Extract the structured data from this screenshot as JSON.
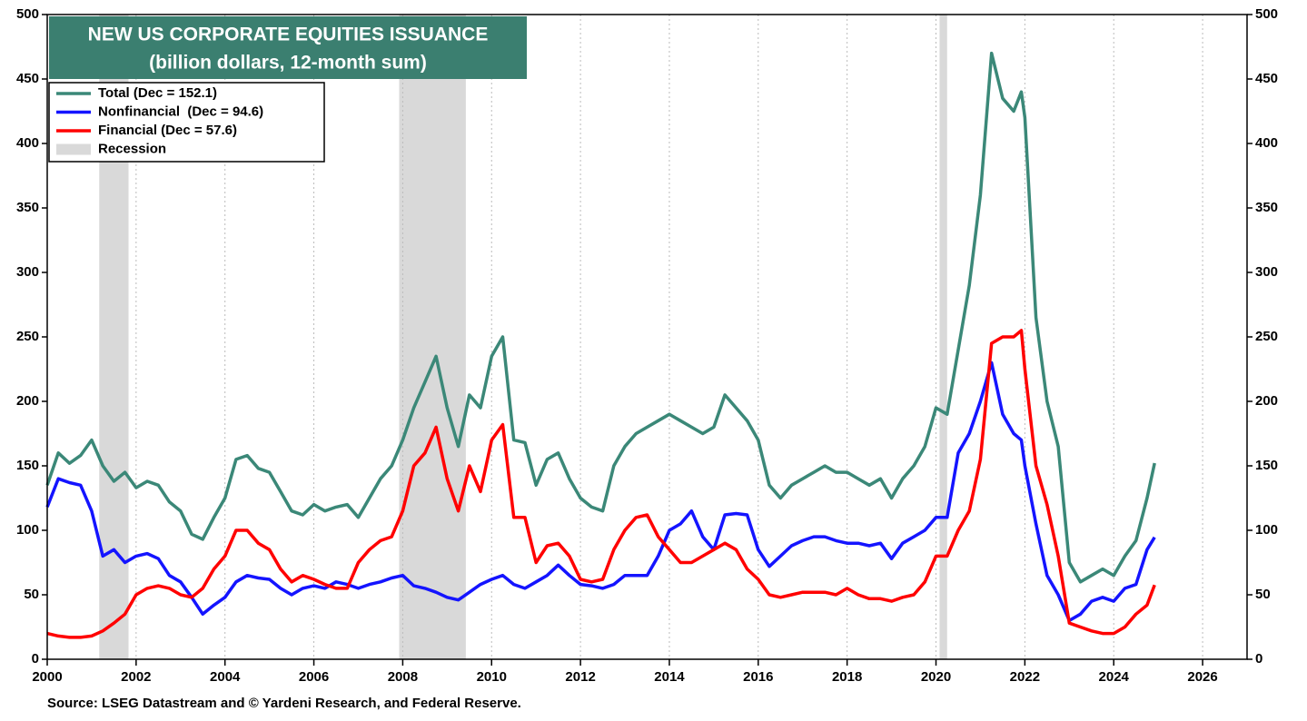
{
  "chart_data": {
    "type": "line",
    "title": "NEW US CORPORATE EQUITIES ISSUANCE",
    "subtitle": "(billion dollars, 12-month sum)",
    "source": "Source: LSEG Datastream and © Yardeni Research, and Federal Reserve.",
    "x": [
      2000,
      2000.25,
      2000.5,
      2000.75,
      2001,
      2001.25,
      2001.5,
      2001.75,
      2002,
      2002.25,
      2002.5,
      2002.75,
      2003,
      2003.25,
      2003.5,
      2003.75,
      2004,
      2004.25,
      2004.5,
      2004.75,
      2005,
      2005.25,
      2005.5,
      2005.75,
      2006,
      2006.25,
      2006.5,
      2006.75,
      2007,
      2007.25,
      2007.5,
      2007.75,
      2008,
      2008.25,
      2008.5,
      2008.75,
      2009,
      2009.25,
      2009.5,
      2009.75,
      2010,
      2010.25,
      2010.5,
      2010.75,
      2011,
      2011.25,
      2011.5,
      2011.75,
      2012,
      2012.25,
      2012.5,
      2012.75,
      2013,
      2013.25,
      2013.5,
      2013.75,
      2014,
      2014.25,
      2014.5,
      2014.75,
      2015,
      2015.25,
      2015.5,
      2015.75,
      2016,
      2016.25,
      2016.5,
      2016.75,
      2017,
      2017.25,
      2017.5,
      2017.75,
      2018,
      2018.25,
      2018.5,
      2018.75,
      2019,
      2019.25,
      2019.5,
      2019.75,
      2020,
      2020.25,
      2020.5,
      2020.75,
      2021,
      2021.25,
      2021.5,
      2021.75,
      2021.92,
      2022,
      2022.25,
      2022.5,
      2022.75,
      2023,
      2023.25,
      2023.5,
      2023.75,
      2024,
      2024.25,
      2024.5,
      2024.75,
      2024.92
    ],
    "series": [
      {
        "name": "Total (Dec = 152.1)",
        "color": "#3b8878",
        "values": [
          135,
          160,
          152,
          158,
          170,
          150,
          138,
          145,
          133,
          138,
          135,
          122,
          115,
          97,
          93,
          110,
          125,
          155,
          158,
          148,
          145,
          130,
          115,
          112,
          120,
          115,
          118,
          120,
          110,
          125,
          140,
          150,
          170,
          195,
          215,
          235,
          195,
          165,
          205,
          195,
          235,
          250,
          170,
          168,
          135,
          155,
          160,
          140,
          125,
          118,
          115,
          150,
          165,
          175,
          180,
          185,
          190,
          185,
          180,
          175,
          180,
          205,
          195,
          185,
          170,
          135,
          125,
          135,
          140,
          145,
          150,
          145,
          145,
          140,
          135,
          140,
          125,
          140,
          150,
          165,
          195,
          190,
          240,
          290,
          360,
          470,
          435,
          425,
          440,
          420,
          265,
          200,
          165,
          75,
          60,
          65,
          70,
          65,
          80,
          92,
          125,
          152.1
        ]
      },
      {
        "name": "Nonfinancial  (Dec = 94.6)",
        "color": "#1414ff",
        "values": [
          118,
          140,
          137,
          135,
          115,
          80,
          85,
          75,
          80,
          82,
          78,
          65,
          60,
          48,
          35,
          42,
          48,
          60,
          65,
          63,
          62,
          55,
          50,
          55,
          57,
          55,
          60,
          58,
          55,
          58,
          60,
          63,
          65,
          57,
          55,
          52,
          48,
          46,
          52,
          58,
          62,
          65,
          58,
          55,
          60,
          65,
          73,
          65,
          58,
          57,
          55,
          58,
          65,
          65,
          65,
          80,
          100,
          105,
          115,
          95,
          85,
          112,
          113,
          112,
          85,
          72,
          80,
          88,
          92,
          95,
          95,
          92,
          90,
          90,
          88,
          90,
          78,
          90,
          95,
          100,
          110,
          110,
          160,
          175,
          200,
          230,
          190,
          175,
          170,
          150,
          105,
          65,
          50,
          30,
          35,
          45,
          48,
          45,
          55,
          58,
          85,
          94.6
        ]
      },
      {
        "name": "Financial (Dec = 57.6)",
        "color": "#ff0000",
        "values": [
          20,
          18,
          17,
          17,
          18,
          22,
          28,
          35,
          50,
          55,
          57,
          55,
          50,
          48,
          55,
          70,
          80,
          100,
          100,
          90,
          85,
          70,
          60,
          65,
          62,
          58,
          55,
          55,
          75,
          85,
          92,
          95,
          115,
          150,
          160,
          180,
          140,
          115,
          150,
          130,
          170,
          182,
          110,
          110,
          75,
          88,
          90,
          80,
          62,
          60,
          62,
          85,
          100,
          110,
          112,
          95,
          85,
          75,
          75,
          80,
          85,
          90,
          85,
          70,
          62,
          50,
          48,
          50,
          52,
          52,
          52,
          50,
          55,
          50,
          47,
          47,
          45,
          48,
          50,
          60,
          80,
          80,
          100,
          115,
          155,
          245,
          250,
          250,
          255,
          225,
          150,
          120,
          80,
          28,
          25,
          22,
          20,
          20,
          25,
          35,
          42,
          57.6
        ]
      }
    ],
    "recession_label": "Recession",
    "recession_color": "#d9d9d9",
    "recessions": [
      {
        "start": 2001.17,
        "end": 2001.83
      },
      {
        "start": 2007.92,
        "end": 2009.42
      },
      {
        "start": 2020.08,
        "end": 2020.25
      }
    ],
    "xlim": [
      2000,
      2027
    ],
    "xticks": [
      2000,
      2002,
      2004,
      2006,
      2008,
      2010,
      2012,
      2014,
      2016,
      2018,
      2020,
      2022,
      2024,
      2026
    ],
    "ylim": [
      0,
      500
    ],
    "yticks": [
      0,
      50,
      100,
      150,
      200,
      250,
      300,
      350,
      400,
      450,
      500
    ],
    "grid": true
  }
}
